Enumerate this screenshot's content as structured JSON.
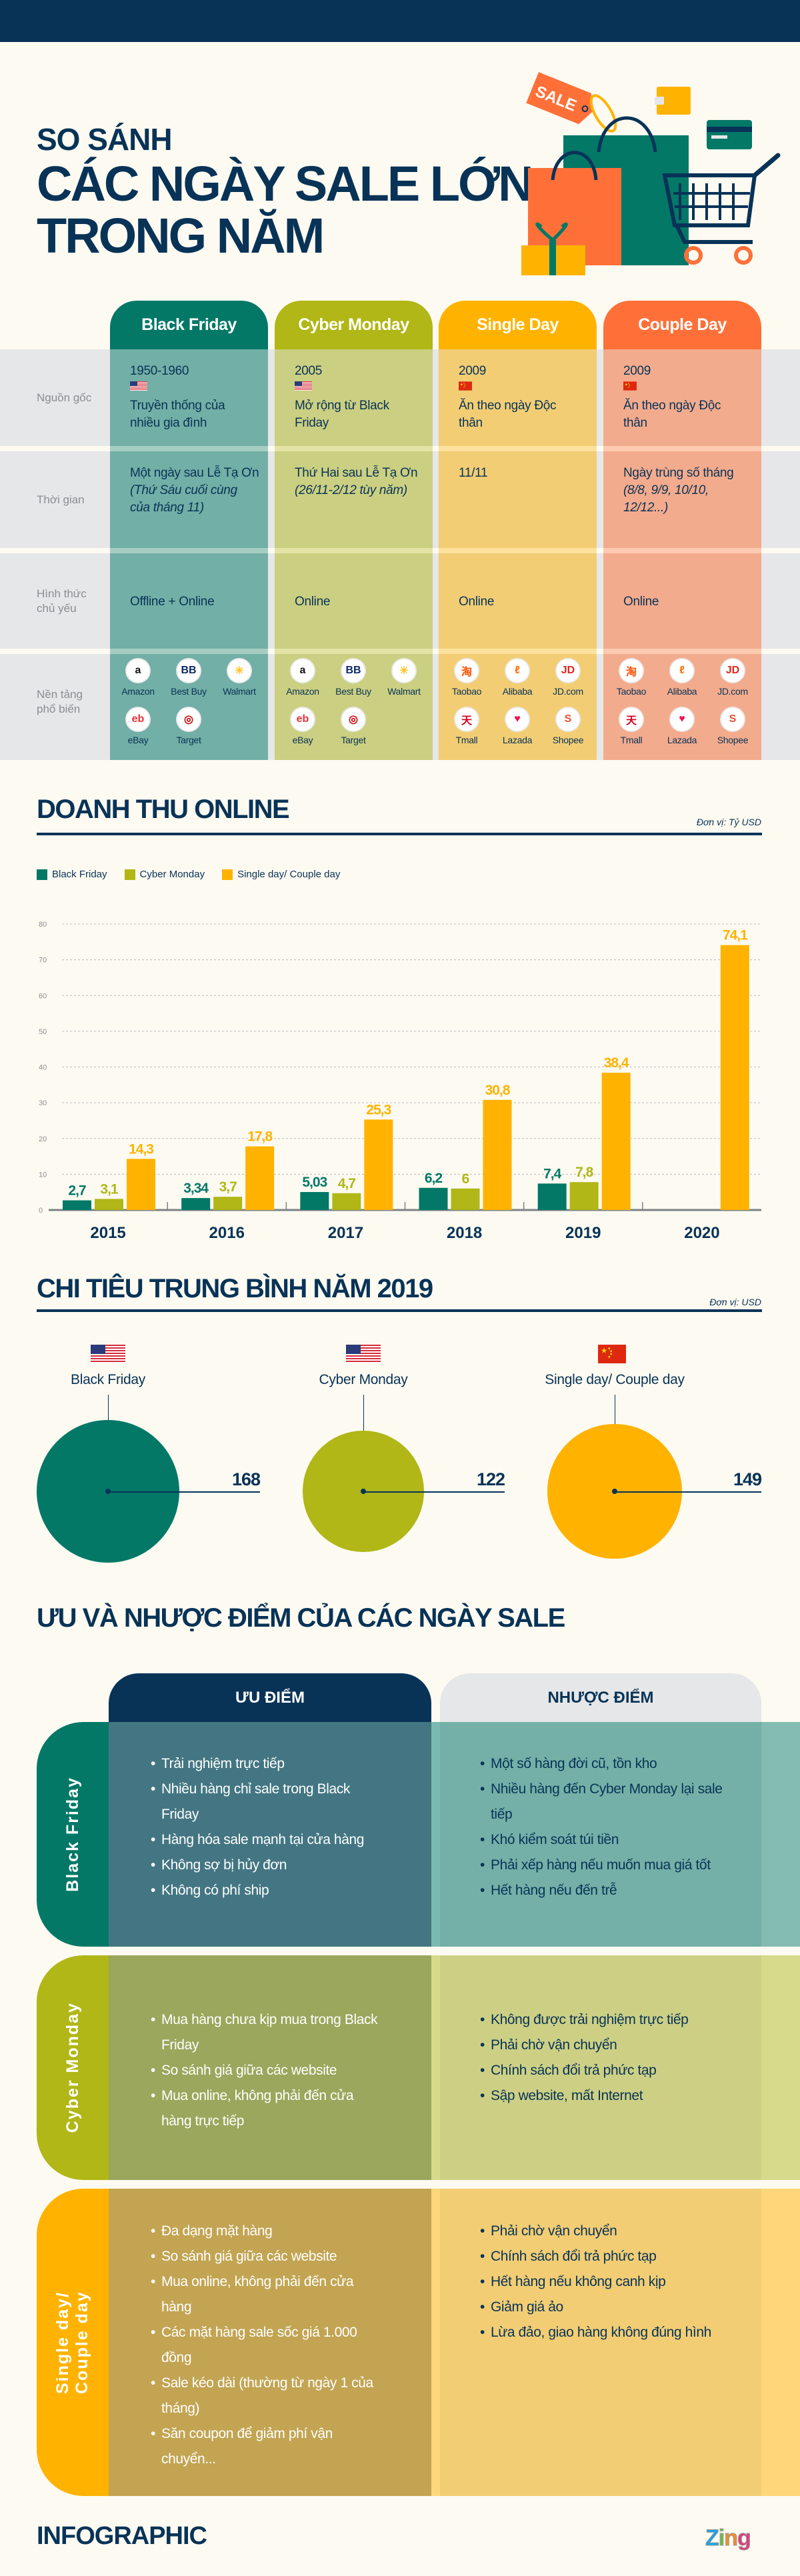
{
  "header": {
    "title_line1": "SO SÁNH",
    "title_line2": "CÁC NGÀY SALE LỚN",
    "title_line3": "TRONG NĂM",
    "sale_tag": "SALE"
  },
  "colors": {
    "navy": "#083357",
    "black_friday": "#037867",
    "cyber_monday": "#b0b716",
    "single_day": "#ffb300",
    "couple_day": "#ff7039",
    "background": "#fdfaf1"
  },
  "comparison": {
    "row_labels": [
      "Nguồn gốc",
      "Thời gian",
      "Hình thức\nchủ yếu",
      "Nền tảng\nphổ biến"
    ],
    "columns": [
      {
        "name": "Black Friday",
        "color": "#037867",
        "tint": "#72afa6",
        "year": "1950-1960",
        "flag": "us-flag",
        "origin": "Truyền thống của nhiều gia đình",
        "time": "Một ngày sau Lễ Tạ Ơn",
        "time_note": "(Thứ Sáu cuối cùng của tháng 11)",
        "form": "Offline + Online",
        "platforms": [
          {
            "name": "Amazon",
            "icon": "amazon-logo"
          },
          {
            "name": "Best Buy",
            "icon": "bestbuy-logo"
          },
          {
            "name": "Walmart",
            "icon": "walmart-logo"
          },
          {
            "name": "eBay",
            "icon": "ebay-logo"
          },
          {
            "name": "Target",
            "icon": "target-logo"
          }
        ]
      },
      {
        "name": "Cyber Monday",
        "color": "#b0b716",
        "tint": "#cbcf81",
        "year": "2005",
        "flag": "us-flag",
        "origin": "Mở rộng từ Black Friday",
        "time": "Thứ Hai sau Lễ Tạ Ơn",
        "time_note": "(26/11-2/12 tùy năm)",
        "form": "Online",
        "platforms": [
          {
            "name": "Amazon",
            "icon": "amazon-logo"
          },
          {
            "name": "Best Buy",
            "icon": "bestbuy-logo"
          },
          {
            "name": "Walmart",
            "icon": "walmart-logo"
          },
          {
            "name": "eBay",
            "icon": "ebay-logo"
          },
          {
            "name": "Target",
            "icon": "target-logo"
          }
        ]
      },
      {
        "name": "Single Day",
        "color": "#ffb300",
        "tint": "#f2cd74",
        "year": "2009",
        "flag": "cn-flag",
        "origin": "Ăn theo ngày Độc thân",
        "time": "11/11",
        "time_note": "",
        "form": "Online",
        "platforms": [
          {
            "name": "Taobao",
            "icon": "taobao-logo"
          },
          {
            "name": "Alibaba",
            "icon": "alibaba-logo"
          },
          {
            "name": "JD.com",
            "icon": "jd-logo"
          },
          {
            "name": "Tmall",
            "icon": "tmall-logo"
          },
          {
            "name": "Lazada",
            "icon": "lazada-logo"
          },
          {
            "name": "Shopee",
            "icon": "shopee-logo"
          }
        ]
      },
      {
        "name": "Couple Day",
        "color": "#ff7039",
        "tint": "#f3ab8d",
        "year": "2009",
        "flag": "cn-flag",
        "origin": "Ăn theo ngày Độc thân",
        "time": "Ngày trùng số tháng",
        "time_note": "(8/8, 9/9, 10/10, 12/12...)",
        "form": "Online",
        "platforms": [
          {
            "name": "Taobao",
            "icon": "taobao-logo"
          },
          {
            "name": "Alibaba",
            "icon": "alibaba-logo"
          },
          {
            "name": "JD.com",
            "icon": "jd-logo"
          },
          {
            "name": "Tmall",
            "icon": "tmall-logo"
          },
          {
            "name": "Lazada",
            "icon": "lazada-logo"
          },
          {
            "name": "Shopee",
            "icon": "shopee-logo"
          }
        ]
      }
    ]
  },
  "chart_data": [
    {
      "type": "bar",
      "title": "DOANH THU ONLINE",
      "unit": "Đơn vị: Tỷ USD",
      "categories": [
        "2015",
        "2016",
        "2017",
        "2018",
        "2019",
        "2020"
      ],
      "series": [
        {
          "name": "Black Friday",
          "color": "#037867",
          "values": [
            2.7,
            3.34,
            5.03,
            6.2,
            7.4,
            null
          ]
        },
        {
          "name": "Cyber Monday",
          "color": "#b0b716",
          "values": [
            3.1,
            3.7,
            4.7,
            6,
            7.8,
            null
          ]
        },
        {
          "name": "Single day/ Couple day",
          "color": "#ffb300",
          "values": [
            14.3,
            17.8,
            25.3,
            30.8,
            38.4,
            74.1
          ]
        }
      ],
      "ylim": [
        0,
        80
      ],
      "yticks": [
        0,
        10,
        20,
        30,
        40,
        50,
        60,
        70,
        80
      ],
      "grid": true,
      "legend": "top-left",
      "decimal_separator": ","
    },
    {
      "type": "bubble",
      "title": "CHI TIÊU TRUNG BÌNH NĂM 2019",
      "unit": "Đơn vị: USD",
      "categories": [
        "Black Friday",
        "Cyber Monday",
        "Single day/ Couple day"
      ],
      "flags": [
        "us-flag",
        "us-flag",
        "cn-flag"
      ],
      "colors": [
        "#037867",
        "#b0b716",
        "#ffb300"
      ],
      "values": [
        168,
        122,
        149
      ]
    }
  ],
  "pros_cons": {
    "title": "ƯU VÀ NHƯỢC ĐIỂM CỦA CÁC NGÀY SALE",
    "pros_label": "ƯU ĐIỂM",
    "cons_label": "NHƯỢC ĐIỂM",
    "rows": [
      {
        "label": "Black Friday",
        "color": "#037867",
        "pros_bg": "#437682",
        "cons_bg": "#74b0a7",
        "edge_bg": "#84bbb2",
        "pros": [
          "Trải nghiệm trực tiếp",
          "Nhiều hàng chỉ sale trong Black Friday",
          "Hàng hóa sale mạnh tại cửa hàng",
          "Không sợ bị hủy đơn",
          "Không có phí ship"
        ],
        "cons": [
          "Một số hàng đời cũ, tồn kho",
          "Nhiều hàng đến Cyber Monday lại sale tiếp",
          "Khó kiểm soát túi tiền",
          "Phải xếp hàng nếu muốn mua giá tốt",
          "Hết hàng nếu đến trễ"
        ]
      },
      {
        "label": "Cyber Monday",
        "color": "#b0b716",
        "pros_bg": "#9aa75c",
        "cons_bg": "#cdd084",
        "edge_bg": "#d7da8b",
        "pros": [
          "Mua hàng chưa kịp mua trong Black Friday",
          "So sánh giá giữa các website",
          "Mua online, không phải đến cửa hàng trực tiếp"
        ],
        "cons": [
          "Không được trải nghiệm trực tiếp",
          "Phải chờ vận chuyển",
          "Chính sách đổi trả phức tạp",
          "Sập website, mất Internet"
        ]
      },
      {
        "label": "Single day/ Couple day",
        "color": "#ffb300",
        "pros_bg": "#c2a452",
        "cons_bg": "#f2cd74",
        "edge_bg": "#ffd77a",
        "pros": [
          "Đa dạng mặt hàng",
          "So sánh giá giữa các website",
          "Mua online, không phải đến cửa hàng",
          "Các mặt hàng sale sốc giá 1.000 đồng",
          "Sale kéo dài (thường từ ngày 1 của tháng)",
          "Săn coupon để giảm phí vận chuyển..."
        ],
        "cons": [
          "Phải chờ vận chuyển",
          "Chính sách đổi trả phức tạp",
          "Hết hàng nếu không canh kịp",
          "Giảm giá ảo",
          "Lừa đảo, giao hàng không đúng hình"
        ]
      }
    ]
  },
  "footer": {
    "brand": "INFOGRAPHIC",
    "logo": "Zing"
  }
}
